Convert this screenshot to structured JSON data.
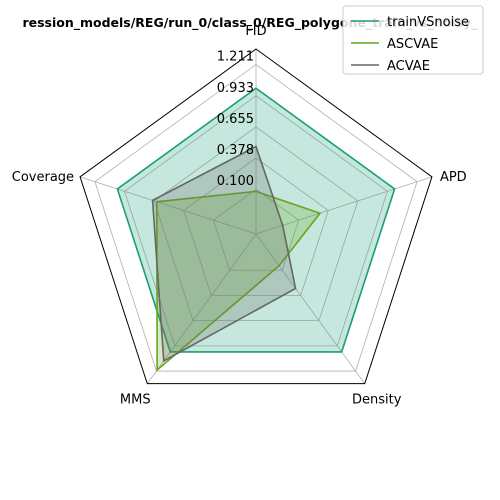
{
  "chart_data": {
    "type": "radar",
    "title": "ression_models/REG/run_0/class_0/REG_polygone_train_vs_noisy_",
    "axes": [
      "FID",
      "APD",
      "Density",
      "MMS",
      "Coverage"
    ],
    "rticks": [
      0.1,
      0.378,
      0.655,
      0.933,
      1.211
    ],
    "rtick_labels": [
      "0.100",
      "0.378",
      "0.655",
      "0.933",
      "1.211"
    ],
    "rlim": [
      -0.3,
      1.35
    ],
    "grid": true,
    "legend_position": "top-right",
    "series": [
      {
        "name": "trainVSnoise",
        "color": "#1a9e77",
        "fill": "#1a9e77",
        "values": [
          1.0,
          1.0,
          1.0,
          1.0,
          1.0
        ]
      },
      {
        "name": "ASCVAE",
        "color": "#66a61e",
        "fill": "#66a61e",
        "values": [
          0.08,
          0.3,
          0.05,
          1.2,
          0.63
        ]
      },
      {
        "name": "ACVAE",
        "color": "#666666",
        "fill": "#666666",
        "values": [
          0.48,
          -0.05,
          0.3,
          1.1,
          0.67
        ]
      }
    ]
  }
}
